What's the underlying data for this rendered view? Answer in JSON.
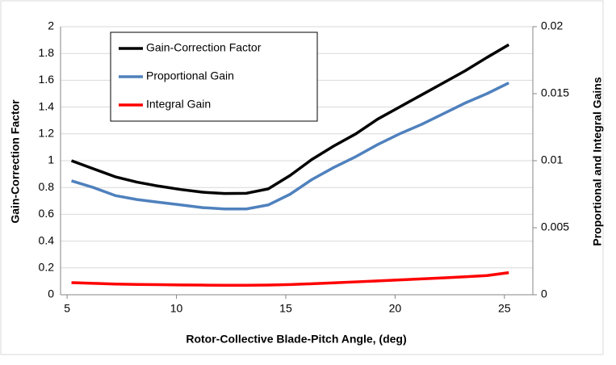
{
  "chart_data": {
    "type": "line",
    "xlabel": "Rotor-Collective Blade-Pitch Angle, (deg)",
    "ylabel": "Gain-Correction Factor",
    "y2label": "Proportional and Integral Gains",
    "x": [
      5.2,
      6.2,
      7.2,
      8.2,
      9.2,
      10.2,
      11.2,
      12.2,
      13.2,
      14.2,
      15.2,
      16.2,
      17.2,
      18.2,
      19.2,
      20.2,
      21.2,
      22.2,
      23.2,
      24.2,
      25.2
    ],
    "series": [
      {
        "name": "Gain-Correction Factor",
        "color": "#000000",
        "values": [
          1.0,
          0.94,
          0.88,
          0.84,
          0.81,
          0.785,
          0.765,
          0.755,
          0.757,
          0.79,
          0.89,
          1.01,
          1.11,
          1.2,
          1.31,
          1.4,
          1.49,
          1.58,
          1.67,
          1.77,
          1.865
        ]
      },
      {
        "name": "Proportional Gain",
        "color": "#4f81bd",
        "axis": "y2",
        "values": [
          0.0085,
          0.008,
          0.0074,
          0.0071,
          0.0069,
          0.0067,
          0.0065,
          0.0064,
          0.0064,
          0.0067,
          0.0075,
          0.0086,
          0.0095,
          0.0103,
          0.0112,
          0.012,
          0.0127,
          0.0135,
          0.0143,
          0.015,
          0.0158
        ]
      },
      {
        "name": "Integral Gain",
        "color": "#ff0000",
        "axis": "y2",
        "values": [
          0.0009,
          0.00085,
          0.0008,
          0.00077,
          0.00075,
          0.00073,
          0.00072,
          0.00071,
          0.00071,
          0.00072,
          0.00076,
          0.00082,
          0.00089,
          0.00096,
          0.00103,
          0.00111,
          0.00118,
          0.00126,
          0.00134,
          0.00143,
          0.00165
        ]
      }
    ],
    "xlim": [
      4.7,
      26.3
    ],
    "xticks": [
      5,
      10,
      15,
      20,
      25
    ],
    "ylim": [
      0,
      2
    ],
    "yticks": [
      0,
      0.2,
      0.4,
      0.6,
      0.8,
      1,
      1.2,
      1.4,
      1.6,
      1.8,
      2
    ],
    "y2lim": [
      0,
      0.02
    ],
    "y2ticks": [
      0,
      0.005,
      0.01,
      0.015,
      0.02
    ],
    "grid": true,
    "legend": "upper left"
  }
}
